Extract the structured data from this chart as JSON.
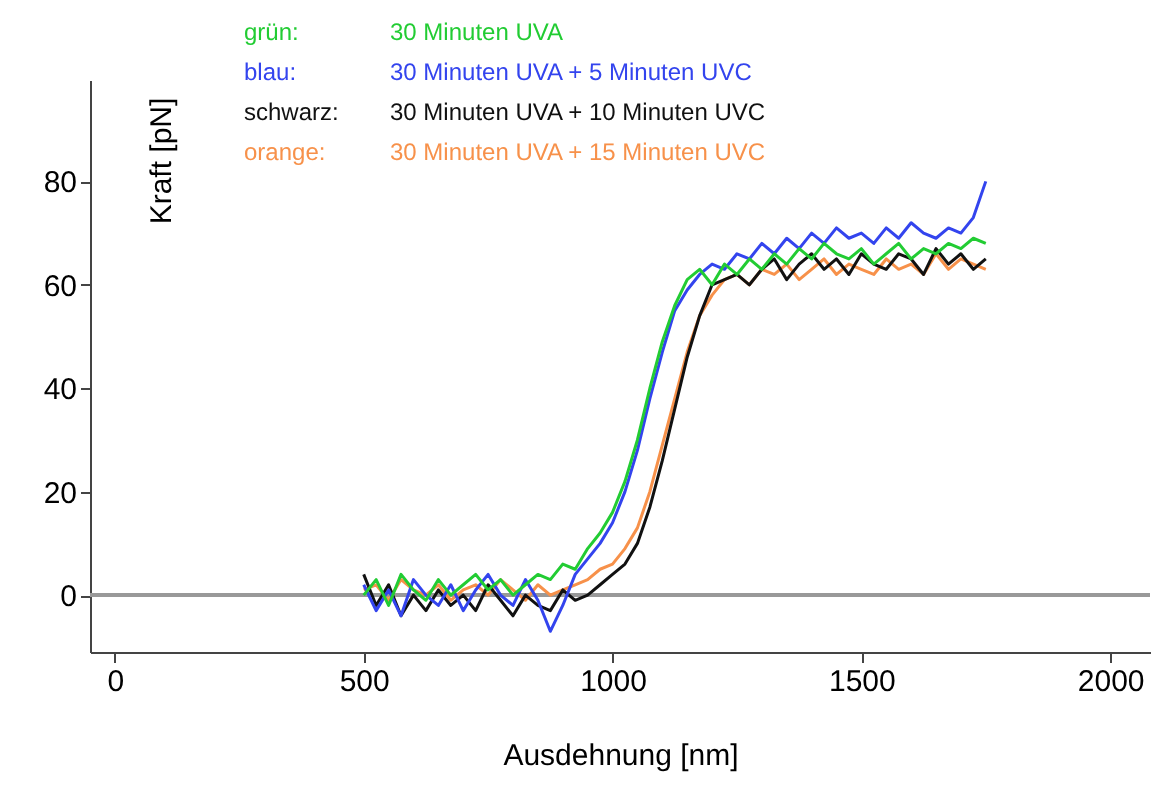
{
  "chart_data": {
    "type": "line",
    "xlabel": "Ausdehnung [nm]",
    "ylabel": "Kraft  [pN]",
    "x": [
      500,
      525,
      550,
      575,
      600,
      625,
      650,
      675,
      700,
      725,
      750,
      775,
      800,
      825,
      850,
      875,
      900,
      925,
      950,
      975,
      1000,
      1025,
      1050,
      1075,
      1100,
      1125,
      1150,
      1175,
      1200,
      1225,
      1250,
      1275,
      1300,
      1325,
      1350,
      1375,
      1400,
      1425,
      1450,
      1475,
      1500,
      1525,
      1550,
      1575,
      1600,
      1625,
      1650,
      1675,
      1700,
      1725,
      1750
    ],
    "series": [
      {
        "name": "30 Minuten UVA",
        "color": "#22cc33",
        "values": [
          0,
          3,
          -2,
          4,
          1,
          -1,
          3,
          0,
          2,
          4,
          1,
          3,
          0,
          2,
          4,
          3,
          6,
          5,
          9,
          12,
          16,
          22,
          30,
          40,
          49,
          56,
          61,
          63,
          60,
          64,
          62,
          65,
          63,
          66,
          64,
          67,
          65,
          68,
          66,
          65,
          67,
          64,
          66,
          68,
          65,
          67,
          66,
          68,
          67,
          69,
          68
        ]
      },
      {
        "name": "30 Minuten UVA +   5 Minuten UVC",
        "color": "#3344ee",
        "values": [
          2,
          -3,
          1,
          -4,
          3,
          0,
          -2,
          2,
          -3,
          1,
          4,
          0,
          -2,
          3,
          -1,
          -7,
          -2,
          4,
          7,
          10,
          14,
          20,
          28,
          38,
          47,
          55,
          59,
          62,
          64,
          63,
          66,
          65,
          68,
          66,
          69,
          67,
          70,
          68,
          71,
          69,
          70,
          68,
          71,
          69,
          72,
          70,
          69,
          71,
          70,
          73,
          80
        ]
      },
      {
        "name": "30 Minuten UVA + 10 Minuten UVC",
        "color": "#111111",
        "values": [
          4,
          -2,
          2,
          -4,
          0,
          -3,
          1,
          -2,
          0,
          -3,
          2,
          -1,
          -4,
          0,
          -2,
          -3,
          1,
          -1,
          0,
          2,
          4,
          6,
          10,
          17,
          26,
          36,
          46,
          54,
          60,
          61,
          62,
          60,
          63,
          65,
          61,
          64,
          66,
          63,
          65,
          62,
          66,
          64,
          63,
          66,
          65,
          62,
          67,
          64,
          66,
          63,
          65
        ]
      },
      {
        "name": "30 Minuten UVA + 15 Minuten UVC",
        "color": "#f7914a",
        "values": [
          1,
          2,
          -1,
          3,
          1,
          0,
          2,
          -1,
          1,
          2,
          0,
          3,
          1,
          -1,
          2,
          0,
          1,
          2,
          3,
          5,
          6,
          9,
          13,
          20,
          29,
          38,
          47,
          54,
          58,
          61,
          62,
          60,
          63,
          62,
          64,
          61,
          63,
          65,
          62,
          64,
          63,
          62,
          65,
          63,
          64,
          62,
          66,
          63,
          65,
          64,
          63
        ]
      }
    ],
    "annotations": [
      "grün:",
      "blau:",
      "schwarz:",
      "orange:"
    ],
    "legend": "top",
    "ref_lines": [
      {
        "axis": "y",
        "value": 0,
        "color": "#999999"
      }
    ],
    "xlim": [
      -50,
      2080
    ],
    "ylim": [
      -11,
      99.6
    ],
    "xticks": [
      0,
      500,
      1000,
      1500,
      2000
    ],
    "yticks": [
      0,
      20,
      40,
      60,
      80
    ],
    "grid": false
  }
}
